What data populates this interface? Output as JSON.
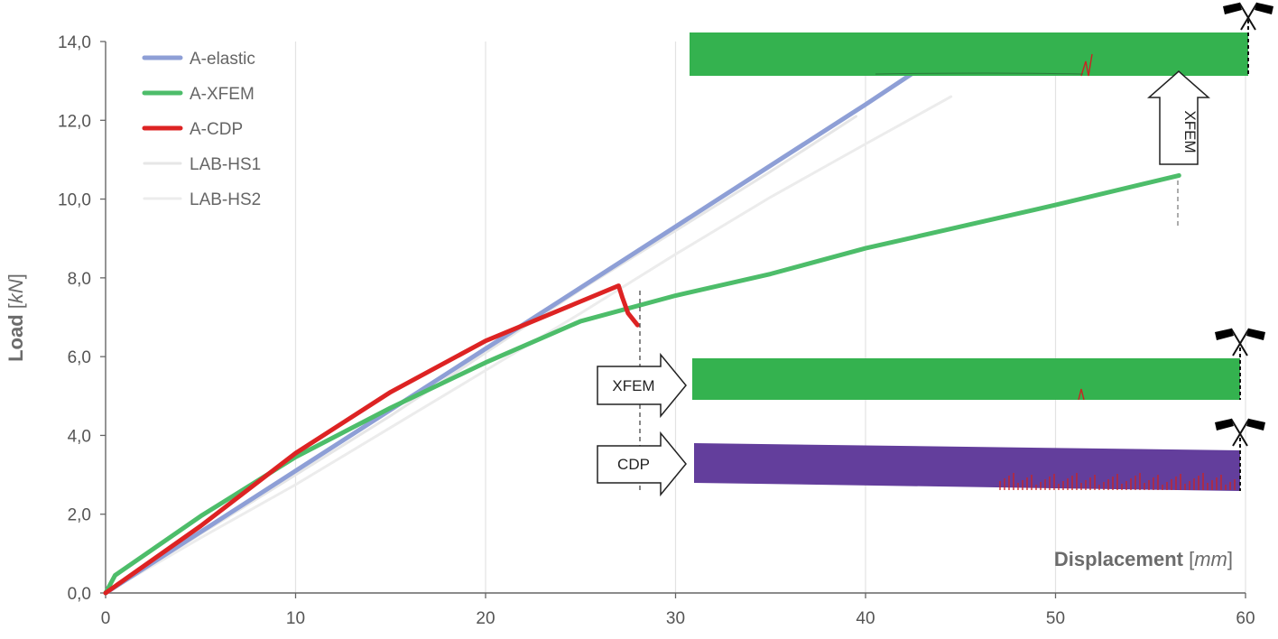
{
  "chart_data": {
    "type": "line",
    "xlabel": {
      "main": "Displacement",
      "unit": "mm"
    },
    "ylabel": {
      "main": "Load",
      "unit": "kN"
    },
    "xlim": [
      0,
      60
    ],
    "ylim": [
      0,
      14
    ],
    "x_ticks": [
      "0",
      "10",
      "20",
      "30",
      "40",
      "50",
      "60"
    ],
    "y_ticks": [
      "0,0",
      "2,0",
      "4,0",
      "6,0",
      "8,0",
      "10,0",
      "12,0",
      "14,0"
    ],
    "grid": "vertical",
    "legend_position": "top-left",
    "series": [
      {
        "name": "A-elastic",
        "color": "#8e9fd6",
        "points": [
          [
            0,
            0
          ],
          [
            10,
            3.1
          ],
          [
            20,
            6.2
          ],
          [
            30,
            9.3
          ],
          [
            40,
            12.4
          ],
          [
            42.5,
            13.2
          ]
        ]
      },
      {
        "name": "A-XFEM",
        "color": "#4dbd6a",
        "points": [
          [
            0,
            0
          ],
          [
            0.5,
            0.45
          ],
          [
            5,
            1.95
          ],
          [
            10,
            3.45
          ],
          [
            15,
            4.7
          ],
          [
            20,
            5.85
          ],
          [
            25,
            6.9
          ],
          [
            30,
            7.55
          ],
          [
            35,
            8.1
          ],
          [
            40,
            8.75
          ],
          [
            45,
            9.3
          ],
          [
            50,
            9.85
          ],
          [
            56.5,
            10.6
          ]
        ]
      },
      {
        "name": "A-CDP",
        "color": "#dd2323",
        "points": [
          [
            0,
            0
          ],
          [
            5,
            1.7
          ],
          [
            10,
            3.55
          ],
          [
            15,
            5.1
          ],
          [
            20,
            6.4
          ],
          [
            25,
            7.4
          ],
          [
            27,
            7.8
          ],
          [
            27.2,
            7.5
          ],
          [
            27.5,
            7.1
          ],
          [
            28,
            6.8
          ]
        ]
      },
      {
        "name": "LAB-HS1",
        "color": "#e6e6e6",
        "points": [
          [
            0,
            0
          ],
          [
            5,
            1.5
          ],
          [
            10,
            3.0
          ],
          [
            15,
            4.5
          ],
          [
            20,
            6.1
          ],
          [
            25,
            7.7
          ],
          [
            30,
            9.2
          ],
          [
            35,
            10.7
          ],
          [
            39.5,
            12.1
          ]
        ]
      },
      {
        "name": "LAB-HS2",
        "color": "#ececec",
        "points": [
          [
            0,
            0
          ],
          [
            5,
            1.4
          ],
          [
            10,
            2.75
          ],
          [
            15,
            4.2
          ],
          [
            20,
            5.65
          ],
          [
            25,
            7.1
          ],
          [
            30,
            8.6
          ],
          [
            35,
            10.05
          ],
          [
            40,
            11.4
          ],
          [
            44.5,
            12.6
          ]
        ]
      }
    ],
    "annotations": {
      "xfem_arrow_top": "XFEM",
      "xfem_arrow_mid": "XFEM",
      "cdp_arrow": "CDP"
    },
    "beam_insets": [
      {
        "model": "XFEM",
        "color": "#34b24f",
        "crack_color": "#cc2222"
      },
      {
        "model": "XFEM",
        "color": "#34b24f",
        "crack_color": "#cc2222"
      },
      {
        "model": "CDP",
        "color": "#633e9c",
        "crack_color": "#cc2222"
      }
    ]
  }
}
